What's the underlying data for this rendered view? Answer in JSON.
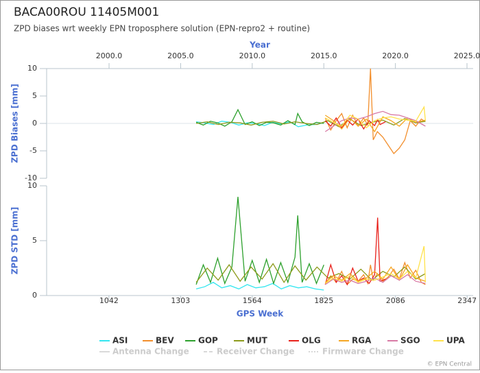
{
  "title": "BACA00ROU 11405M001",
  "subtitle": "ZPD biases wrt weekly EPN troposphere solution (EPN-repro2 + routine)",
  "change_legend": [
    "Antenna Change",
    "Receiver Change",
    "Firmware Change"
  ],
  "credit": "© EPN Central",
  "chart_data": [
    {
      "type": "line",
      "ylabel": "ZPD Biases [mm]",
      "x2label": "Year",
      "xlim": [
        815,
        2369
      ],
      "ylim": [
        -10,
        10
      ],
      "yticks": [
        10,
        5,
        0,
        -5,
        -10
      ],
      "x2lim": [
        1995.64,
        2025.43
      ],
      "x2ticks": [
        {
          "value": 2000,
          "label": "2000.0"
        },
        {
          "value": 2005,
          "label": "2005.0"
        },
        {
          "value": 2010,
          "label": "2010.0"
        },
        {
          "value": 2015,
          "label": "2015.0"
        },
        {
          "value": 2020,
          "label": "2020.0"
        },
        {
          "value": 2025,
          "label": "2025.0"
        }
      ],
      "series": [
        {
          "name": "ASI",
          "color": "#33e6f0",
          "x": [
            1360,
            1391,
            1422,
            1453,
            1484,
            1515,
            1546,
            1577,
            1608,
            1639,
            1670,
            1701,
            1732,
            1763,
            1794,
            1825
          ],
          "values": [
            0.3,
            0.1,
            -0.2,
            0.4,
            0.2,
            -0.3,
            0.1,
            0.0,
            -0.4,
            0.2,
            -0.1,
            0.3,
            -0.6,
            -0.3,
            -0.2,
            0.1
          ]
        },
        {
          "name": "BEV",
          "color": "#f28e2b",
          "x": [
            1830,
            1850,
            1870,
            1890,
            1910,
            1930,
            1950,
            1970,
            1985,
            1995,
            2005,
            2020,
            2040,
            2060,
            2080,
            2100,
            2120,
            2140,
            2160,
            2180,
            2195
          ],
          "values": [
            1.0,
            -1.2,
            0.5,
            1.8,
            -0.8,
            1.5,
            -0.5,
            1.0,
            -0.3,
            10.0,
            -3.0,
            -1.5,
            -2.5,
            -4.0,
            -5.5,
            -4.5,
            -3.0,
            0.5,
            -0.5,
            0.8,
            0.3
          ]
        },
        {
          "name": "GOP",
          "color": "#2ca02c",
          "x": [
            1360,
            1386,
            1412,
            1438,
            1464,
            1490,
            1512,
            1538,
            1564,
            1590,
            1616,
            1642,
            1668,
            1694,
            1720,
            1730,
            1746,
            1772,
            1798,
            1825
          ],
          "values": [
            0.2,
            -0.3,
            0.4,
            0.1,
            -0.5,
            0.3,
            2.5,
            -0.2,
            0.3,
            -0.4,
            0.2,
            0.1,
            -0.3,
            0.5,
            -0.2,
            1.8,
            0.3,
            -0.4,
            0.2,
            0.0
          ]
        },
        {
          "name": "MUT",
          "color": "#8c9a1a",
          "x": [
            1360,
            1400,
            1440,
            1480,
            1520,
            1560,
            1600,
            1640,
            1680,
            1720,
            1760,
            1800,
            1840,
            1880,
            1920,
            1960,
            2000,
            2040,
            2080,
            2120,
            2160,
            2195
          ],
          "values": [
            0.0,
            0.3,
            -0.2,
            0.2,
            0.1,
            -0.3,
            0.2,
            0.4,
            -0.1,
            0.3,
            0.0,
            -0.2,
            0.5,
            -0.6,
            0.8,
            -0.4,
            0.2,
            0.6,
            -0.3,
            0.9,
            0.1,
            0.4
          ]
        },
        {
          "name": "OLG",
          "color": "#e8201a",
          "x": [
            1830,
            1850,
            1870,
            1890,
            1910,
            1930,
            1950,
            1970,
            1990,
            2010,
            2021,
            2030,
            2050
          ],
          "values": [
            0.5,
            -0.5,
            1.0,
            -0.8,
            0.6,
            -0.3,
            0.8,
            -1.0,
            0.5,
            -0.4,
            0.7,
            -0.2,
            0.3
          ]
        },
        {
          "name": "RGA",
          "color": "#f5a623",
          "x": [
            1830,
            1860,
            1890,
            1920,
            1950,
            1980,
            2010,
            2040,
            2070,
            2100,
            2130,
            2160,
            2195
          ],
          "values": [
            1.5,
            0.5,
            -1.0,
            1.0,
            -0.5,
            0.8,
            -1.5,
            1.2,
            0.5,
            -0.5,
            1.0,
            0.2,
            0.6
          ]
        },
        {
          "name": "SGO",
          "color": "#d87aa5",
          "x": [
            1830,
            1860,
            1890,
            1920,
            1950,
            1980,
            2010,
            2040,
            2070,
            2100,
            2130,
            2160,
            2195
          ],
          "values": [
            -1.5,
            -0.5,
            0.5,
            1.0,
            0.8,
            1.2,
            1.8,
            2.2,
            1.6,
            1.5,
            1.0,
            0.5,
            -0.5
          ]
        },
        {
          "name": "UPA",
          "color": "#ffe24a",
          "x": [
            1830,
            1860,
            1890,
            1920,
            1950,
            1980,
            2010,
            2040,
            2070,
            2100,
            2130,
            2160,
            2190,
            2195
          ],
          "values": [
            1.0,
            0.2,
            -0.5,
            1.5,
            0.8,
            -0.8,
            0.5,
            1.0,
            1.2,
            0.8,
            0.6,
            0.4,
            3.0,
            0.5
          ]
        }
      ]
    },
    {
      "type": "line",
      "ylabel": "ZPD STD [mm]",
      "xlabel": "GPS Week",
      "xlim": [
        815,
        2369
      ],
      "xticks": [
        1042,
        1303,
        1564,
        1825,
        2086,
        2347
      ],
      "ylim": [
        0,
        10
      ],
      "yticks": [
        10,
        5,
        0
      ],
      "series": [
        {
          "color": "#33e6f0",
          "x": [
            1360,
            1391,
            1422,
            1453,
            1484,
            1515,
            1546,
            1577,
            1608,
            1639,
            1670,
            1701,
            1732,
            1763,
            1794,
            1825
          ],
          "values": [
            0.6,
            0.8,
            1.2,
            0.7,
            0.9,
            0.6,
            1.0,
            0.7,
            0.8,
            1.1,
            0.6,
            0.9,
            0.7,
            0.8,
            0.6,
            0.5
          ]
        },
        {
          "color": "#f28e2b",
          "x": [
            1830,
            1850,
            1870,
            1890,
            1910,
            1930,
            1950,
            1970,
            1985,
            1995,
            2005,
            2020,
            2040,
            2060,
            2080,
            2100,
            2120,
            2140,
            2160,
            2180,
            2195
          ],
          "values": [
            1.0,
            1.8,
            1.2,
            2.2,
            1.0,
            1.5,
            1.3,
            1.9,
            1.1,
            2.8,
            1.4,
            2.0,
            1.3,
            1.7,
            2.4,
            1.5,
            3.0,
            1.6,
            2.3,
            1.2,
            1.0
          ]
        },
        {
          "color": "#2ca02c",
          "x": [
            1360,
            1386,
            1412,
            1438,
            1464,
            1490,
            1512,
            1538,
            1564,
            1590,
            1616,
            1642,
            1668,
            1694,
            1720,
            1730,
            1746,
            1772,
            1798,
            1825
          ],
          "values": [
            1.0,
            2.8,
            1.2,
            3.4,
            1.1,
            2.6,
            9.0,
            1.3,
            3.2,
            1.2,
            3.3,
            1.1,
            3.0,
            1.2,
            3.5,
            7.3,
            1.2,
            2.9,
            1.1,
            2.8
          ]
        },
        {
          "color": "#8c9a1a",
          "x": [
            1360,
            1400,
            1440,
            1480,
            1520,
            1560,
            1600,
            1640,
            1680,
            1720,
            1760,
            1800,
            1840,
            1880,
            1920,
            1960,
            2000,
            2040,
            2080,
            2120,
            2160,
            2195
          ],
          "values": [
            1.2,
            2.5,
            1.4,
            2.8,
            1.3,
            2.6,
            1.5,
            2.9,
            1.2,
            2.7,
            1.4,
            2.6,
            1.6,
            2.0,
            1.5,
            2.4,
            1.4,
            2.2,
            1.7,
            2.6,
            1.5,
            2.0
          ]
        },
        {
          "color": "#e8201a",
          "x": [
            1830,
            1850,
            1870,
            1890,
            1910,
            1930,
            1950,
            1970,
            1990,
            2010,
            2021,
            2030,
            2050
          ],
          "values": [
            1.0,
            2.8,
            1.2,
            1.8,
            1.0,
            2.5,
            1.3,
            1.6,
            1.1,
            1.9,
            7.1,
            1.3,
            1.5
          ]
        },
        {
          "color": "#f5a623",
          "x": [
            1830,
            1860,
            1890,
            1920,
            1950,
            1980,
            2010,
            2040,
            2070,
            2100,
            2130,
            2160,
            2195
          ],
          "values": [
            1.2,
            1.8,
            1.4,
            2.0,
            1.3,
            1.6,
            2.2,
            1.5,
            2.6,
            1.4,
            2.8,
            1.6,
            1.3
          ]
        },
        {
          "color": "#d87aa5",
          "x": [
            1830,
            1860,
            1890,
            1920,
            1950,
            1980,
            2010,
            2040,
            2070,
            2100,
            2130,
            2160,
            2195
          ],
          "values": [
            1.0,
            1.5,
            1.2,
            1.4,
            1.1,
            1.3,
            1.6,
            1.2,
            1.8,
            1.4,
            1.9,
            1.3,
            1.1
          ]
        },
        {
          "color": "#ffe24a",
          "x": [
            1830,
            1860,
            1890,
            1920,
            1950,
            1980,
            2010,
            2040,
            2070,
            2100,
            2130,
            2160,
            2190,
            2195
          ],
          "values": [
            1.1,
            1.6,
            1.3,
            1.8,
            1.2,
            1.5,
            1.4,
            1.7,
            2.0,
            1.5,
            2.2,
            1.6,
            4.5,
            1.2
          ]
        }
      ]
    }
  ]
}
